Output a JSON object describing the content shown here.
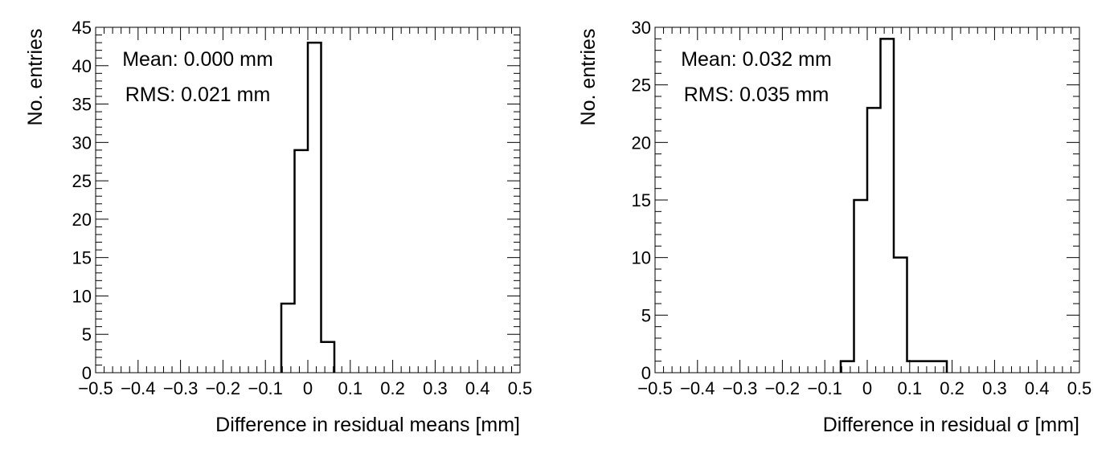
{
  "chart_data": [
    {
      "type": "bar",
      "histogram": true,
      "xlabel": "Difference in residual means [mm]",
      "ylabel": "No. entries",
      "xlim": [
        -0.5,
        0.5
      ],
      "ylim": [
        0,
        45
      ],
      "x_ticks": [
        -0.5,
        -0.4,
        -0.3,
        -0.2,
        -0.1,
        0,
        0.1,
        0.2,
        0.3,
        0.4,
        0.5
      ],
      "x_tick_labels": [
        "−0.5",
        "−0.4",
        "−0.3",
        "−0.2",
        "−0.1",
        "0",
        "0.1",
        "0.2",
        "0.3",
        "0.4",
        "0.5"
      ],
      "y_ticks": [
        0,
        5,
        10,
        15,
        20,
        25,
        30,
        35,
        40,
        45
      ],
      "y_tick_labels": [
        "0",
        "5",
        "10",
        "15",
        "20",
        "25",
        "30",
        "35",
        "40",
        "45"
      ],
      "bin_edges": [
        -0.0625,
        -0.03125,
        0.0,
        0.03125,
        0.0625
      ],
      "values": [
        9,
        29,
        43,
        4
      ],
      "annotations": [
        "Mean: 0.000 mm",
        "RMS: 0.021 mm"
      ],
      "grid": false
    },
    {
      "type": "bar",
      "histogram": true,
      "xlabel": "Difference in residual σ [mm]",
      "ylabel": "No. entries",
      "xlim": [
        -0.5,
        0.5
      ],
      "ylim": [
        0,
        30
      ],
      "x_ticks": [
        -0.5,
        -0.4,
        -0.3,
        -0.2,
        -0.1,
        0,
        0.1,
        0.2,
        0.3,
        0.4,
        0.5
      ],
      "x_tick_labels": [
        "−0.5",
        "−0.4",
        "−0.3",
        "−0.2",
        "−0.1",
        "0",
        "0.1",
        "0.2",
        "0.3",
        "0.4",
        "0.5"
      ],
      "y_ticks": [
        0,
        5,
        10,
        15,
        20,
        25,
        30
      ],
      "y_tick_labels": [
        "0",
        "5",
        "10",
        "15",
        "20",
        "25",
        "30"
      ],
      "bin_edges": [
        -0.0625,
        -0.03125,
        0.0,
        0.03125,
        0.0625,
        0.09375,
        0.125,
        0.15625,
        0.1875
      ],
      "values": [
        1,
        15,
        23,
        29,
        10,
        1,
        1,
        1
      ],
      "annotations": [
        "Mean: 0.032 mm",
        "RMS: 0.035 mm"
      ],
      "grid": false
    }
  ]
}
